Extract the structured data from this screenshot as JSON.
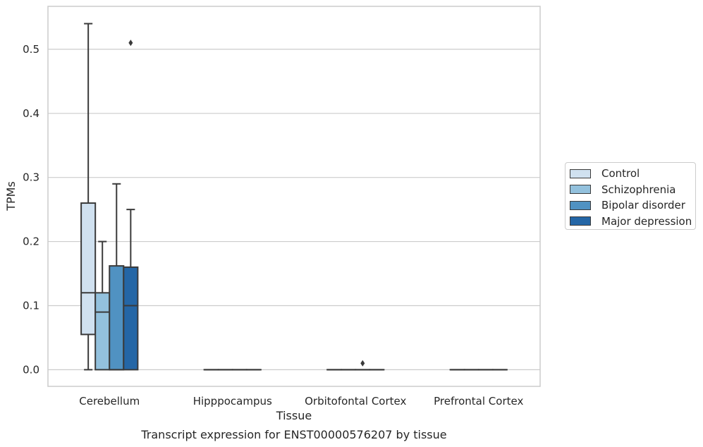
{
  "chart_data": {
    "type": "box",
    "xlabel": "Tissue",
    "ylabel": "TPMs",
    "caption": "Transcript expression for ENST00000576207 by tissue",
    "ylim": [
      -0.026,
      0.567
    ],
    "yticks": [
      "0.0",
      "0.1",
      "0.2",
      "0.3",
      "0.4",
      "0.5"
    ],
    "grid": true,
    "legend_position": "right",
    "categories": [
      "Cerebellum",
      "Hipppocampus",
      "Orbitofontal Cortex",
      "Prefrontal Cortex"
    ],
    "series": [
      {
        "name": "Control",
        "color": "#d0e1f0",
        "boxes": [
          {
            "min": 0.0,
            "q1": 0.055,
            "median": 0.12,
            "q3": 0.26,
            "max": 0.54,
            "outliers": []
          },
          {
            "min": 0.0,
            "q1": 0.0,
            "median": 0.0,
            "q3": 0.0,
            "max": 0.0,
            "outliers": []
          },
          {
            "min": 0.0,
            "q1": 0.0,
            "median": 0.0,
            "q3": 0.0,
            "max": 0.0,
            "outliers": []
          },
          {
            "min": 0.0,
            "q1": 0.0,
            "median": 0.0,
            "q3": 0.0,
            "max": 0.0,
            "outliers": []
          }
        ]
      },
      {
        "name": "Schizophrenia",
        "color": "#93c1dd",
        "boxes": [
          {
            "min": 0.0,
            "q1": 0.0,
            "median": 0.09,
            "q3": 0.12,
            "max": 0.2,
            "outliers": []
          },
          {
            "min": 0.0,
            "q1": 0.0,
            "median": 0.0,
            "q3": 0.0,
            "max": 0.0,
            "outliers": []
          },
          {
            "min": 0.0,
            "q1": 0.0,
            "median": 0.0,
            "q3": 0.0,
            "max": 0.0,
            "outliers": []
          },
          {
            "min": 0.0,
            "q1": 0.0,
            "median": 0.0,
            "q3": 0.0,
            "max": 0.0,
            "outliers": []
          }
        ]
      },
      {
        "name": "Bipolar disorder",
        "color": "#5092c2",
        "boxes": [
          {
            "min": 0.0,
            "q1": 0.0,
            "median": 0.0,
            "q3": 0.162,
            "max": 0.29,
            "outliers": []
          },
          {
            "min": 0.0,
            "q1": 0.0,
            "median": 0.0,
            "q3": 0.0,
            "max": 0.0,
            "outliers": []
          },
          {
            "min": 0.0,
            "q1": 0.0,
            "median": 0.0,
            "q3": 0.0,
            "max": 0.0,
            "outliers": [
              0.01
            ]
          },
          {
            "min": 0.0,
            "q1": 0.0,
            "median": 0.0,
            "q3": 0.0,
            "max": 0.0,
            "outliers": []
          }
        ]
      },
      {
        "name": "Major depression",
        "color": "#2466a6",
        "boxes": [
          {
            "min": 0.0,
            "q1": 0.0,
            "median": 0.1,
            "q3": 0.16,
            "max": 0.25,
            "outliers": [
              0.51
            ]
          },
          {
            "min": 0.0,
            "q1": 0.0,
            "median": 0.0,
            "q3": 0.0,
            "max": 0.0,
            "outliers": []
          },
          {
            "min": 0.0,
            "q1": 0.0,
            "median": 0.0,
            "q3": 0.0,
            "max": 0.0,
            "outliers": []
          },
          {
            "min": 0.0,
            "q1": 0.0,
            "median": 0.0,
            "q3": 0.0,
            "max": 0.0,
            "outliers": []
          }
        ]
      }
    ]
  }
}
